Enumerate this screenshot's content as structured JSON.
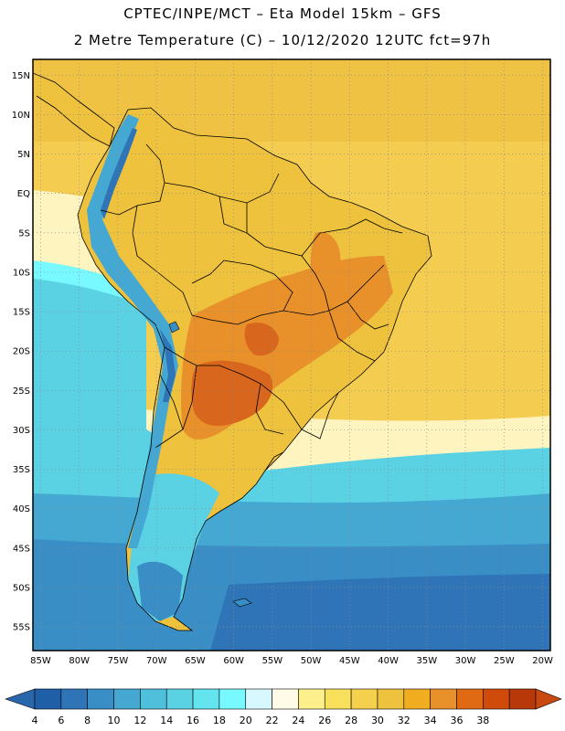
{
  "title_line1": "CPTEC/INPE/MCT –  Eta Model 15km – GFS",
  "title_line2": "2 Metre Temperature (C) – 10/12/2020 12UTC fct=97h",
  "map": {
    "lat_labels": [
      {
        "lat": 15,
        "label": "15N"
      },
      {
        "lat": 10,
        "label": "10N"
      },
      {
        "lat": 5,
        "label": "5N"
      },
      {
        "lat": 0,
        "label": "EQ"
      },
      {
        "lat": -5,
        "label": "5S"
      },
      {
        "lat": -10,
        "label": "10S"
      },
      {
        "lat": -15,
        "label": "15S"
      },
      {
        "lat": -20,
        "label": "20S"
      },
      {
        "lat": -25,
        "label": "25S"
      },
      {
        "lat": -30,
        "label": "30S"
      },
      {
        "lat": -35,
        "label": "35S"
      },
      {
        "lat": -40,
        "label": "40S"
      },
      {
        "lat": -45,
        "label": "45S"
      },
      {
        "lat": -50,
        "label": "50S"
      },
      {
        "lat": -55,
        "label": "55S"
      }
    ],
    "lon_labels": [
      {
        "lon": -85,
        "label": "85W"
      },
      {
        "lon": -80,
        "label": "80W"
      },
      {
        "lon": -75,
        "label": "75W"
      },
      {
        "lon": -70,
        "label": "70W"
      },
      {
        "lon": -65,
        "label": "65W"
      },
      {
        "lon": -60,
        "label": "60W"
      },
      {
        "lon": -55,
        "label": "55W"
      },
      {
        "lon": -50,
        "label": "50W"
      },
      {
        "lon": -45,
        "label": "45W"
      },
      {
        "lon": -40,
        "label": "40W"
      },
      {
        "lon": -35,
        "label": "35W"
      },
      {
        "lon": -30,
        "label": "30W"
      },
      {
        "lon": -25,
        "label": "25W"
      },
      {
        "lon": -20,
        "label": "20W"
      }
    ],
    "extent": {
      "lon_min": -86,
      "lon_max": -19,
      "lat_min": -58,
      "lat_max": 17
    }
  },
  "colorbar": {
    "labels": [
      "4",
      "6",
      "8",
      "10",
      "12",
      "14",
      "16",
      "18",
      "20",
      "22",
      "24",
      "26",
      "28",
      "30",
      "32",
      "34",
      "36",
      "38"
    ],
    "colors": [
      "#1f5fa8",
      "#2f74b6",
      "#3a8ec6",
      "#44a8d2",
      "#4fc0dc",
      "#5ad2e4",
      "#63e4ee",
      "#78f8ff",
      "#d8f8ff",
      "#fffbe6",
      "#fdf08c",
      "#f9e05c",
      "#f4d04c",
      "#eec23c",
      "#f0ad20",
      "#e8902a",
      "#e06a14",
      "#d04a0a",
      "#b8380a"
    ],
    "under_color": "#2a66ac",
    "over_color": "#c84810"
  },
  "colors": {
    "ocean_tropical": "#f4cc50",
    "ocean_mid": "#fdf4c0",
    "ocean_cool": "#5ad2e4",
    "ocean_cold": "#2f74b6",
    "land_warm": "#eec23c",
    "land_hot": "#e8902a",
    "land_very_hot": "#d8661c",
    "andes_cold": "#44a8d2",
    "border": "#000000",
    "grid": "#8a8a8a"
  }
}
